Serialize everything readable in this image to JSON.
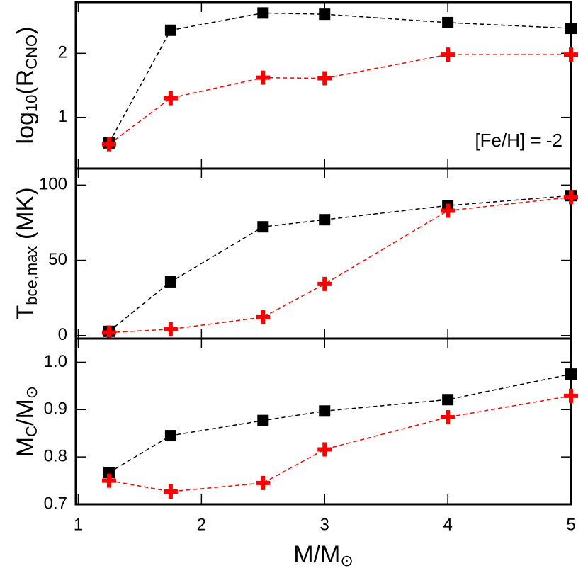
{
  "chart_data": [
    {
      "type": "line",
      "ylabel": [
        {
          "text": "log"
        },
        {
          "text": "10",
          "sub": true
        },
        {
          "text": "(R"
        },
        {
          "text": "CNO",
          "sub": true
        },
        {
          "text": ")"
        }
      ],
      "annotation": "[Fe/H] = -2",
      "x": [
        1.25,
        1.75,
        2.5,
        3,
        4,
        5
      ],
      "xlim": [
        0.98,
        5.0
      ],
      "ylim": [
        0.2,
        2.8
      ],
      "yticks": [
        1,
        2
      ],
      "series": [
        {
          "color": "#000000",
          "marker": "square",
          "values": [
            0.6,
            2.36,
            2.63,
            2.61,
            2.48,
            2.39
          ]
        },
        {
          "color": "#ff0000",
          "marker": "plus",
          "values": [
            0.58,
            1.3,
            1.62,
            1.61,
            1.98,
            1.98
          ]
        }
      ]
    },
    {
      "type": "line",
      "ylabel": [
        {
          "text": "T"
        },
        {
          "text": "bce,max",
          "sub": true
        },
        {
          "text": " (MK)"
        }
      ],
      "x": [
        1.25,
        1.75,
        2.5,
        3,
        4,
        5
      ],
      "xlim": [
        0.98,
        5.0
      ],
      "ylim": [
        -2,
        111
      ],
      "yticks": [
        0,
        50,
        100
      ],
      "series": [
        {
          "color": "#000000",
          "marker": "square",
          "values": [
            2.8,
            35.7,
            72.3,
            77,
            86.4,
            93
          ]
        },
        {
          "color": "#ff0000",
          "marker": "plus",
          "values": [
            2,
            4.2,
            12.2,
            34.3,
            83,
            92
          ]
        }
      ]
    },
    {
      "type": "line",
      "ylabel": [
        {
          "text": "M"
        },
        {
          "text": "C",
          "sub": true
        },
        {
          "text": "/M"
        },
        {
          "text": "⊙",
          "sub": true
        }
      ],
      "xlabel": [
        {
          "text": "M/M"
        },
        {
          "text": "⊙",
          "sub": true
        }
      ],
      "x": [
        1.25,
        1.75,
        2.5,
        3,
        4,
        5
      ],
      "xlim": [
        0.98,
        5.0
      ],
      "xticks": [
        1,
        2,
        3,
        4,
        5
      ],
      "ylim": [
        0.7,
        1.05
      ],
      "yticks": [
        0.7,
        0.8,
        0.9,
        {
          "value": 1.0,
          "label": "1.0"
        }
      ],
      "series": [
        {
          "color": "#000000",
          "marker": "square",
          "values": [
            0.767,
            0.845,
            0.877,
            0.897,
            0.921,
            0.975
          ]
        },
        {
          "color": "#ff0000",
          "marker": "plus",
          "values": [
            0.75,
            0.727,
            0.745,
            0.816,
            0.884,
            0.929
          ]
        }
      ]
    }
  ]
}
